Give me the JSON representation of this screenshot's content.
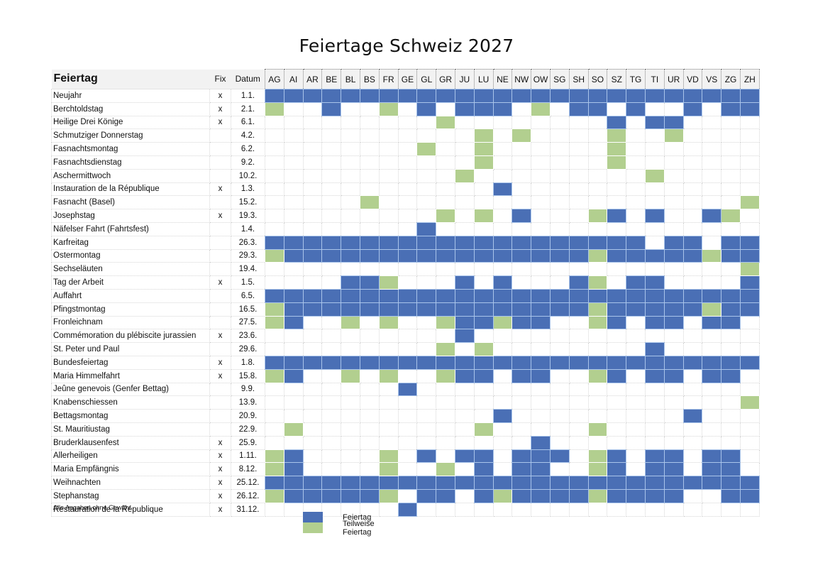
{
  "title": "Feiertage Schweiz 2027",
  "header": {
    "name": "Feiertag",
    "fix": "Fix",
    "date": "Datum"
  },
  "cantons": [
    "AG",
    "AI",
    "AR",
    "BE",
    "BL",
    "BS",
    "FR",
    "GE",
    "GL",
    "GR",
    "JU",
    "LU",
    "NE",
    "NW",
    "OW",
    "SG",
    "SH",
    "SO",
    "SZ",
    "TG",
    "TI",
    "UR",
    "VD",
    "VS",
    "ZG",
    "ZH"
  ],
  "colors": {
    "feiertag": "#4a6fb5",
    "teilweise": "#b2cf8f"
  },
  "legend": [
    {
      "key": "B",
      "label": "Feiertag"
    },
    {
      "key": "G",
      "label": "Teilweise Feiertag"
    }
  ],
  "footnote": "Alle Angaben ohne Gewähr",
  "rows": [
    {
      "name": "Neujahr",
      "fix": "x",
      "date": "1.1.",
      "cells": "BBBBBBBBBBBBBBBBBBBBBBBBBB"
    },
    {
      "name": "Berchtoldstag",
      "fix": "x",
      "date": "2.1.",
      "cells": "G..B..G.B.BBB.G.BB.B..B.BB"
    },
    {
      "name": "Heilige Drei Könige",
      "fix": "x",
      "date": "6.1.",
      "cells": ".........G........B.BB...."
    },
    {
      "name": "Schmutziger Donnerstag",
      "fix": "",
      "date": "4.2.",
      "cells": "...........G.G....G..G...."
    },
    {
      "name": "Fasnachtsmontag",
      "fix": "",
      "date": "6.2.",
      "cells": "........G..G......G......."
    },
    {
      "name": "Fasnachtsdienstag",
      "fix": "",
      "date": "9.2.",
      "cells": "...........G......G......."
    },
    {
      "name": "Aschermittwoch",
      "fix": "",
      "date": "10.2.",
      "cells": "..........G.........G....."
    },
    {
      "name": "Instauration de la République",
      "fix": "x",
      "date": "1.3.",
      "cells": "............B............."
    },
    {
      "name": "Fasnacht (Basel)",
      "fix": "",
      "date": "15.2.",
      "cells": ".....G...................G"
    },
    {
      "name": "Josephstag",
      "fix": "x",
      "date": "19.3.",
      "cells": ".........G.G.B...GB.B..BG."
    },
    {
      "name": "Näfelser Fahrt (Fahrtsfest)",
      "fix": "",
      "date": "1.4.",
      "cells": "........B................."
    },
    {
      "name": "Karfreitag",
      "fix": "",
      "date": "26.3.",
      "cells": "BBBBBBBBBBBBBBBBBBBB.BB.BB"
    },
    {
      "name": "Ostermontag",
      "fix": "",
      "date": "29.3.",
      "cells": "GBBBBBBBBBBBBBBBBGBBBBBGBB"
    },
    {
      "name": "Sechseläuten",
      "fix": "",
      "date": "19.4.",
      "cells": ".........................G"
    },
    {
      "name": "Tag der Arbeit",
      "fix": "x",
      "date": "1.5.",
      "cells": "....BBG...B.B...BG.BB....B"
    },
    {
      "name": "Auffahrt",
      "fix": "",
      "date": "6.5.",
      "cells": "BBBBBBBBBBBBBBBBBBBBBBBBBB"
    },
    {
      "name": "Pfingstmontag",
      "fix": "",
      "date": "16.5.",
      "cells": "GBBBBBBBBBBBBBBBBGBBBBBGBB"
    },
    {
      "name": "Fronleichnam",
      "fix": "",
      "date": "27.5.",
      "cells": "GB..G.G..GBBGBB..GB.BB.BB."
    },
    {
      "name": "Commémoration du plébiscite jurassien",
      "fix": "x",
      "date": "23.6.",
      "cells": "..........B..............."
    },
    {
      "name": "St. Peter und Paul",
      "fix": "",
      "date": "29.6.",
      "cells": ".........G.G........B....."
    },
    {
      "name": "Bundesfeiertag",
      "fix": "x",
      "date": "1.8.",
      "cells": "BBBBBBBBBBBBBBBBBBBBBBBBBB"
    },
    {
      "name": "Maria Himmelfahrt",
      "fix": "x",
      "date": "15.8.",
      "cells": "GB..G.G..GBB.BB..GB.BB.BB."
    },
    {
      "name": "Jeûne genevois (Genfer Bettag)",
      "fix": "",
      "date": "9.9.",
      "cells": ".......B.................."
    },
    {
      "name": "Knabenschiessen",
      "fix": "",
      "date": "13.9.",
      "cells": ".........................G"
    },
    {
      "name": "Bettagsmontag",
      "fix": "",
      "date": "20.9.",
      "cells": "............B.........B..."
    },
    {
      "name": "St. Mauritiustag",
      "fix": "",
      "date": "22.9.",
      "cells": ".G.........G.....G........"
    },
    {
      "name": "Bruderklausenfest",
      "fix": "x",
      "date": "25.9.",
      "cells": "..............B..........."
    },
    {
      "name": "Allerheiligen",
      "fix": "x",
      "date": "1.11.",
      "cells": "GB....G.B.BB.BBB.GB.BB.BB."
    },
    {
      "name": "Maria Empfängnis",
      "fix": "x",
      "date": "8.12.",
      "cells": "GB....G..G.B.BB..GB.BB.BB."
    },
    {
      "name": "Weihnachten",
      "fix": "x",
      "date": "25.12.",
      "cells": "BBBBBBBBBBBBBBBBBBBBBBBBBB"
    },
    {
      "name": "Stephanstag",
      "fix": "x",
      "date": "26.12.",
      "cells": "GBBBBBG.BB.BGBBBBGBBBB..BB"
    },
    {
      "name": "Restauration de la République",
      "fix": "x",
      "date": "31.12.",
      "cells": ".......B.................."
    }
  ]
}
